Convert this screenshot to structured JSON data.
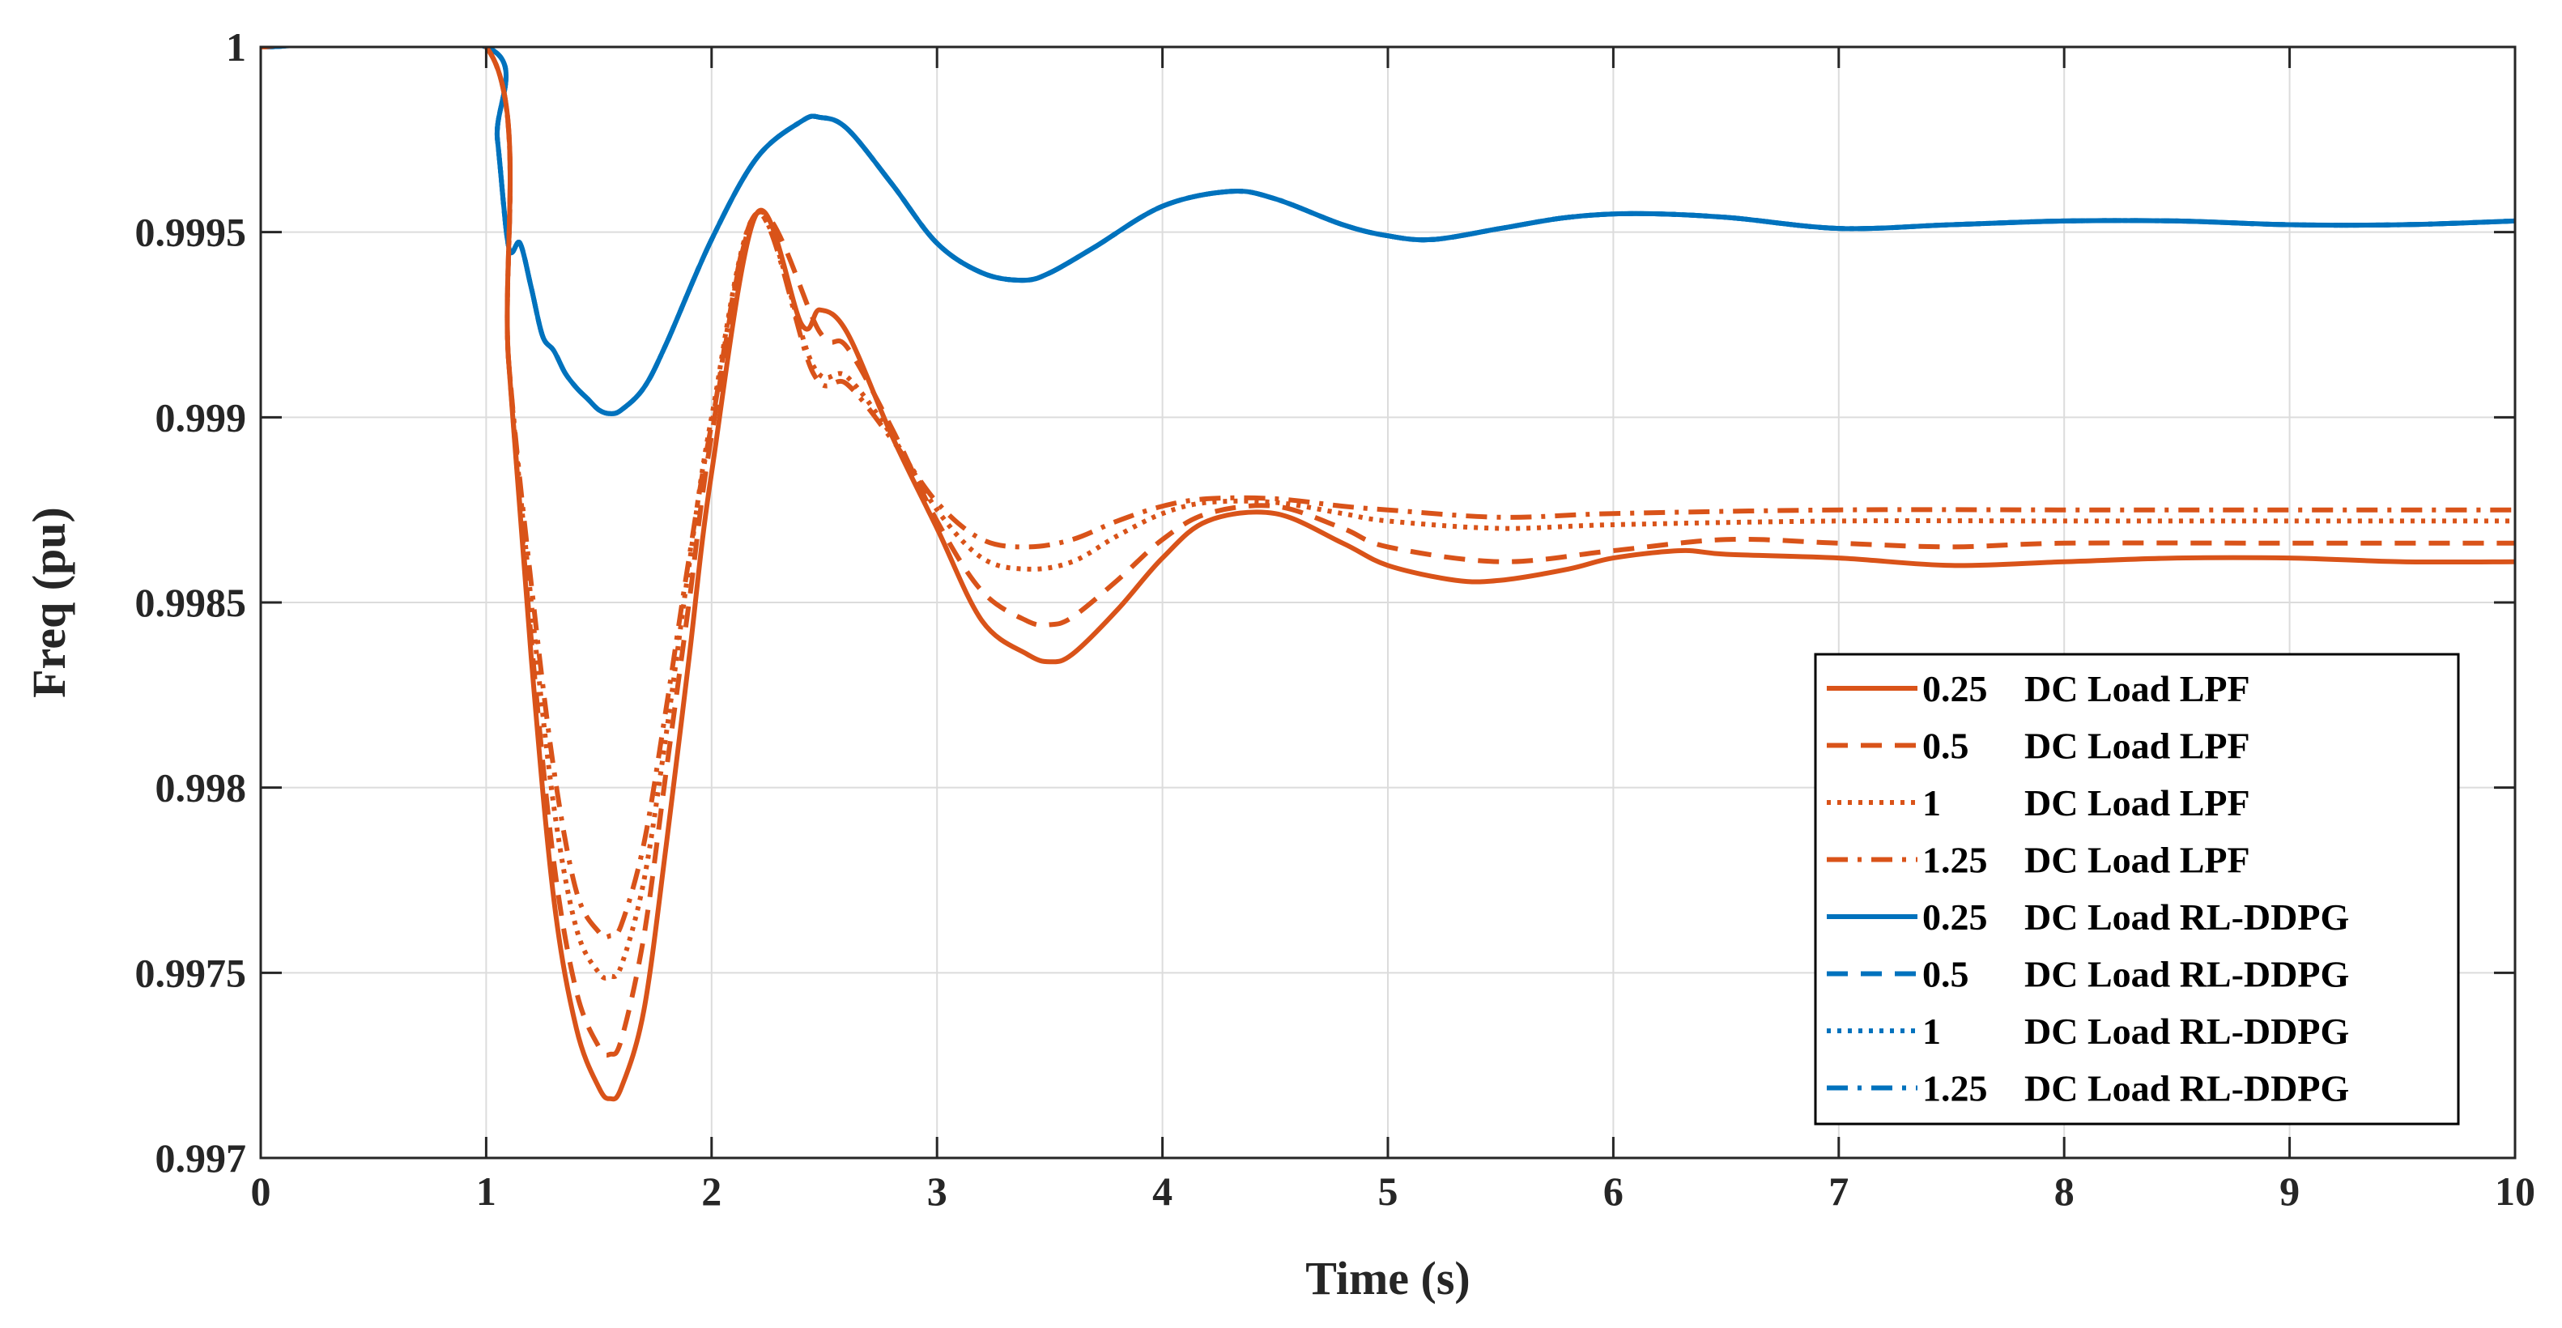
{
  "chart_data": {
    "type": "line",
    "title": "",
    "xlabel": "Time (s)",
    "ylabel": "Freq (pu)",
    "xlim": [
      0,
      10
    ],
    "ylim": [
      0.997,
      1.0
    ],
    "xticks": [
      0,
      1,
      2,
      3,
      4,
      5,
      6,
      7,
      8,
      9,
      10
    ],
    "xtick_labels": [
      "0",
      "1",
      "2",
      "3",
      "4",
      "5",
      "6",
      "7",
      "8",
      "9",
      "10"
    ],
    "yticks": [
      0.997,
      0.9975,
      0.998,
      0.9985,
      0.999,
      0.9995,
      1.0
    ],
    "ytick_labels": [
      "0.997",
      "0.9975",
      "0.998",
      "0.9985",
      "0.999",
      "0.9995",
      "1"
    ],
    "grid": true,
    "legend_position": "bottom-right",
    "colors": {
      "lpf": "#D95319",
      "rl": "#0072BD",
      "axis": "#262626",
      "grid": "#DCDCDC"
    },
    "series": [
      {
        "name": "0.25 DC Load LPF",
        "legend_value": "0.25",
        "legend_desc": "DC Load LPF",
        "color": "#D95319",
        "style": "solid",
        "x": [
          0,
          1.0,
          1.1,
          1.2,
          1.3,
          1.4,
          1.5,
          1.55,
          1.6,
          1.7,
          1.8,
          1.9,
          2.0,
          2.2,
          2.4,
          2.48,
          2.6,
          2.8,
          3.0,
          3.2,
          3.4,
          3.5,
          3.6,
          3.8,
          4.0,
          4.2,
          4.5,
          4.8,
          5.0,
          5.3,
          5.5,
          5.8,
          6.0,
          6.3,
          6.5,
          7.0,
          7.5,
          8.0,
          8.5,
          9.0,
          9.5,
          10.0
        ],
        "y": [
          1.0,
          1.0,
          0.99915,
          0.99835,
          0.9977,
          0.99735,
          0.99719,
          0.99716,
          0.99719,
          0.9974,
          0.99785,
          0.99835,
          0.99885,
          0.99955,
          0.99925,
          0.99929,
          0.99923,
          0.99895,
          0.9987,
          0.99845,
          0.99836,
          0.99834,
          0.99836,
          0.99848,
          0.99862,
          0.99872,
          0.99874,
          0.99866,
          0.9986,
          0.99856,
          0.99856,
          0.99859,
          0.99862,
          0.99864,
          0.99863,
          0.99862,
          0.9986,
          0.99861,
          0.99862,
          0.99862,
          0.99861,
          0.99861
        ]
      },
      {
        "name": "0.5 DC Load LPF",
        "legend_value": "0.5",
        "legend_desc": "DC Load LPF",
        "color": "#D95319",
        "style": "dashed",
        "x": [
          0,
          1.0,
          1.1,
          1.2,
          1.3,
          1.4,
          1.5,
          1.55,
          1.6,
          1.7,
          1.8,
          1.9,
          2.0,
          2.2,
          2.48,
          2.6,
          2.8,
          3.0,
          3.2,
          3.4,
          3.5,
          3.6,
          3.8,
          4.0,
          4.2,
          4.5,
          4.8,
          5.0,
          5.5,
          6.0,
          6.5,
          7.0,
          7.5,
          8.0,
          9.0,
          10.0
        ],
        "y": [
          1.0,
          1.0,
          0.99915,
          0.9984,
          0.9978,
          0.99745,
          0.9973,
          0.99728,
          0.99732,
          0.9976,
          0.99805,
          0.9985,
          0.99895,
          0.99955,
          0.99923,
          0.99919,
          0.99897,
          0.99872,
          0.99853,
          0.99845,
          0.99844,
          0.99846,
          0.99856,
          0.99867,
          0.99874,
          0.99876,
          0.9987,
          0.99865,
          0.99861,
          0.99864,
          0.99867,
          0.99866,
          0.99865,
          0.99866,
          0.99866,
          0.99866
        ]
      },
      {
        "name": "1 DC Load LPF",
        "legend_value": "1",
        "legend_desc": "DC Load LPF",
        "color": "#D95319",
        "style": "dotted",
        "x": [
          0,
          1.0,
          1.1,
          1.2,
          1.3,
          1.4,
          1.5,
          1.55,
          1.6,
          1.7,
          1.8,
          1.9,
          2.0,
          2.2,
          2.45,
          2.6,
          2.8,
          3.0,
          3.2,
          3.4,
          3.6,
          3.8,
          4.0,
          4.2,
          4.5,
          4.8,
          5.0,
          5.5,
          6.0,
          7.0,
          8.0,
          9.0,
          10.0
        ],
        "y": [
          1.0,
          1.0,
          0.99915,
          0.9985,
          0.99795,
          0.99762,
          0.9975,
          0.99749,
          0.99752,
          0.99775,
          0.99815,
          0.9986,
          0.999,
          0.99955,
          0.99914,
          0.99911,
          0.99895,
          0.99875,
          0.99862,
          0.99859,
          0.99861,
          0.99868,
          0.99874,
          0.99877,
          0.99877,
          0.99874,
          0.99872,
          0.9987,
          0.99871,
          0.99872,
          0.99872,
          0.99872,
          0.99872
        ]
      },
      {
        "name": "1.25 DC Load LPF",
        "legend_value": "1.25",
        "legend_desc": "DC Load LPF",
        "color": "#D95319",
        "style": "dashdot",
        "x": [
          0,
          1.0,
          1.1,
          1.2,
          1.3,
          1.4,
          1.5,
          1.55,
          1.6,
          1.7,
          1.8,
          1.9,
          2.0,
          2.2,
          2.45,
          2.6,
          2.8,
          3.0,
          3.2,
          3.4,
          3.6,
          3.8,
          4.0,
          4.2,
          4.5,
          4.8,
          5.0,
          5.5,
          6.0,
          7.0,
          8.0,
          9.0,
          10.0
        ],
        "y": [
          1.0,
          1.0,
          0.99915,
          0.99855,
          0.99805,
          0.99772,
          0.99761,
          0.9976,
          0.99763,
          0.99785,
          0.99822,
          0.99862,
          0.99898,
          0.99955,
          0.99912,
          0.99909,
          0.99894,
          0.99877,
          0.99867,
          0.99865,
          0.99867,
          0.99872,
          0.99876,
          0.99878,
          0.99878,
          0.99876,
          0.99875,
          0.99873,
          0.99874,
          0.99875,
          0.99875,
          0.99875,
          0.99875
        ]
      },
      {
        "name": "0.25 DC Load RL-DDPG",
        "legend_value": "0.25",
        "legend_desc": "DC Load RL-DDPG",
        "color": "#0072BD",
        "style": "solid",
        "x": [
          0,
          1.0,
          1.05,
          1.1,
          1.15,
          1.2,
          1.25,
          1.3,
          1.35,
          1.4,
          1.45,
          1.5,
          1.55,
          1.6,
          1.7,
          1.8,
          2.0,
          2.2,
          2.4,
          2.48,
          2.6,
          2.8,
          3.0,
          3.2,
          3.38,
          3.5,
          3.7,
          4.0,
          4.3,
          4.5,
          4.8,
          5.0,
          5.2,
          5.5,
          5.8,
          6.1,
          6.5,
          7.0,
          7.5,
          8.0,
          8.5,
          9.0,
          9.5,
          10.0
        ],
        "y": [
          1.0,
          1.0,
          0.99975,
          0.99946,
          0.99947,
          0.99935,
          0.99922,
          0.99918,
          0.99912,
          0.99908,
          0.99905,
          0.99902,
          0.99901,
          0.99902,
          0.99908,
          0.9992,
          0.99948,
          0.9997,
          0.9998,
          0.99981,
          0.99978,
          0.99963,
          0.99947,
          0.99939,
          0.99937,
          0.99939,
          0.99946,
          0.99957,
          0.99961,
          0.99959,
          0.99952,
          0.99949,
          0.99948,
          0.99951,
          0.99954,
          0.99955,
          0.99954,
          0.99951,
          0.99952,
          0.99953,
          0.99953,
          0.99952,
          0.99952,
          0.99953
        ]
      },
      {
        "name": "0.5 DC Load RL-DDPG",
        "legend_value": "0.5",
        "legend_desc": "DC Load RL-DDPG",
        "color": "#0072BD",
        "style": "dashed",
        "x": [
          0,
          1.0,
          1.05,
          1.1,
          1.15,
          1.2,
          1.25,
          1.3,
          1.35,
          1.4,
          1.45,
          1.5,
          1.55,
          1.6,
          1.7,
          1.8,
          2.0,
          2.2,
          2.4,
          2.48,
          2.6,
          2.8,
          3.0,
          3.2,
          3.38,
          3.5,
          3.7,
          4.0,
          4.3,
          4.5,
          4.8,
          5.0,
          5.2,
          5.5,
          5.8,
          6.1,
          6.5,
          7.0,
          7.5,
          8.0,
          8.5,
          9.0,
          9.5,
          10.0
        ],
        "y": [
          1.0,
          1.0,
          0.99975,
          0.99946,
          0.99947,
          0.99935,
          0.99922,
          0.99918,
          0.99912,
          0.99908,
          0.99905,
          0.99902,
          0.99901,
          0.99902,
          0.99908,
          0.9992,
          0.99948,
          0.9997,
          0.9998,
          0.99981,
          0.99978,
          0.99963,
          0.99947,
          0.99939,
          0.99937,
          0.99939,
          0.99946,
          0.99957,
          0.99961,
          0.99959,
          0.99952,
          0.99949,
          0.99948,
          0.99951,
          0.99954,
          0.99955,
          0.99954,
          0.99951,
          0.99952,
          0.99953,
          0.99953,
          0.99952,
          0.99952,
          0.99953
        ]
      },
      {
        "name": "1 DC Load RL-DDPG",
        "legend_value": "1",
        "legend_desc": "DC Load RL-DDPG",
        "color": "#0072BD",
        "style": "dotted",
        "x": [
          0,
          1.0,
          1.05,
          1.1,
          1.15,
          1.2,
          1.25,
          1.3,
          1.35,
          1.4,
          1.45,
          1.5,
          1.55,
          1.6,
          1.7,
          1.8,
          2.0,
          2.2,
          2.4,
          2.48,
          2.6,
          2.8,
          3.0,
          3.2,
          3.38,
          3.5,
          3.7,
          4.0,
          4.3,
          4.5,
          4.8,
          5.0,
          5.2,
          5.5,
          5.8,
          6.1,
          6.5,
          7.0,
          7.5,
          8.0,
          8.5,
          9.0,
          9.5,
          10.0
        ],
        "y": [
          1.0,
          1.0,
          0.99975,
          0.99946,
          0.99947,
          0.99935,
          0.99922,
          0.99918,
          0.99912,
          0.99908,
          0.99905,
          0.99902,
          0.99901,
          0.99902,
          0.99908,
          0.9992,
          0.99948,
          0.9997,
          0.9998,
          0.99981,
          0.99978,
          0.99963,
          0.99947,
          0.99939,
          0.99937,
          0.99939,
          0.99946,
          0.99957,
          0.99961,
          0.99959,
          0.99952,
          0.99949,
          0.99948,
          0.99951,
          0.99954,
          0.99955,
          0.99954,
          0.99951,
          0.99952,
          0.99953,
          0.99953,
          0.99952,
          0.99952,
          0.99953
        ]
      },
      {
        "name": "1.25 DC Load RL-DDPG",
        "legend_value": "1.25",
        "legend_desc": "DC Load RL-DDPG",
        "color": "#0072BD",
        "style": "dashdot",
        "x": [
          0,
          1.0,
          1.05,
          1.1,
          1.15,
          1.2,
          1.25,
          1.3,
          1.35,
          1.4,
          1.45,
          1.5,
          1.55,
          1.6,
          1.7,
          1.8,
          2.0,
          2.2,
          2.4,
          2.48,
          2.6,
          2.8,
          3.0,
          3.2,
          3.38,
          3.5,
          3.7,
          4.0,
          4.3,
          4.5,
          4.8,
          5.0,
          5.2,
          5.5,
          5.8,
          6.1,
          6.5,
          7.0,
          7.5,
          8.0,
          8.5,
          9.0,
          9.5,
          10.0
        ],
        "y": [
          1.0,
          1.0,
          0.99975,
          0.99946,
          0.99947,
          0.99935,
          0.99922,
          0.99918,
          0.99912,
          0.99908,
          0.99905,
          0.99902,
          0.99901,
          0.99902,
          0.99908,
          0.9992,
          0.99948,
          0.9997,
          0.9998,
          0.99981,
          0.99978,
          0.99963,
          0.99947,
          0.99939,
          0.99937,
          0.99939,
          0.99946,
          0.99957,
          0.99961,
          0.99959,
          0.99952,
          0.99949,
          0.99948,
          0.99951,
          0.99954,
          0.99955,
          0.99954,
          0.99951,
          0.99952,
          0.99953,
          0.99953,
          0.99952,
          0.99952,
          0.99953
        ]
      }
    ]
  }
}
